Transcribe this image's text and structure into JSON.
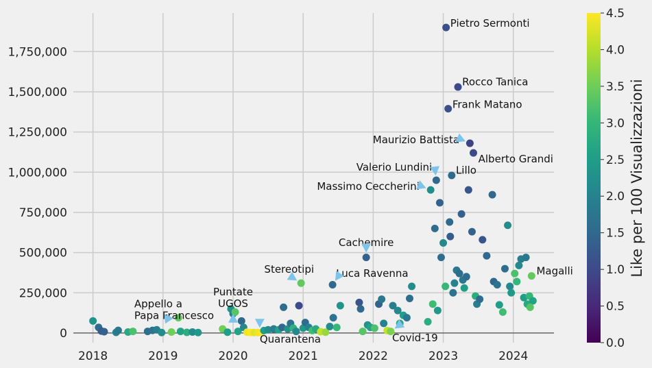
{
  "chart_data": {
    "type": "scatter",
    "title": "",
    "xlabel": "",
    "ylabel": "",
    "x_ticks": [
      "2018",
      "2019",
      "2020",
      "2021",
      "2022",
      "2023",
      "2024"
    ],
    "y_ticks": [
      "0",
      "250,000",
      "500,000",
      "750,000",
      "1,000,000",
      "1,250,000",
      "1,500,000",
      "1,750,000"
    ],
    "xlim": [
      2017.72,
      2024.58
    ],
    "ylim": [
      -60000,
      1990000
    ],
    "grid": true,
    "colorbar": {
      "label": "Like per 100 Visualizzazioni",
      "min": 0,
      "max": 4.5,
      "ticks": [
        "0.0",
        "0.5",
        "1.0",
        "1.5",
        "2.0",
        "2.5",
        "3.0",
        "3.5",
        "4.0",
        "4.5"
      ],
      "colormap": "viridis"
    },
    "points": [
      {
        "x": 2018.0,
        "y": 75000,
        "c": 2.3
      },
      {
        "x": 2018.08,
        "y": 35000,
        "c": 1.6
      },
      {
        "x": 2018.12,
        "y": 12000,
        "c": 1.3
      },
      {
        "x": 2018.16,
        "y": 8000,
        "c": 1.4
      },
      {
        "x": 2018.33,
        "y": 4000,
        "c": 2.0
      },
      {
        "x": 2018.36,
        "y": 16000,
        "c": 1.8
      },
      {
        "x": 2018.5,
        "y": 6000,
        "c": 2.7
      },
      {
        "x": 2018.57,
        "y": 10000,
        "c": 3.2
      },
      {
        "x": 2018.78,
        "y": 10000,
        "c": 1.6
      },
      {
        "x": 2018.85,
        "y": 16000,
        "c": 1.7
      },
      {
        "x": 2018.91,
        "y": 20000,
        "c": 1.9
      },
      {
        "x": 2018.98,
        "y": 3000,
        "c": 2.2
      },
      {
        "x": 2019.12,
        "y": 6000,
        "c": 3.5
      },
      {
        "x": 2019.22,
        "y": 95000,
        "c": 3.4
      },
      {
        "x": 2019.25,
        "y": 10000,
        "c": 2.6
      },
      {
        "x": 2019.34,
        "y": 4000,
        "c": 2.8
      },
      {
        "x": 2019.42,
        "y": 6000,
        "c": 2.2
      },
      {
        "x": 2019.5,
        "y": 3000,
        "c": 2.4
      },
      {
        "x": 2019.85,
        "y": 25000,
        "c": 3.5
      },
      {
        "x": 2019.92,
        "y": 5000,
        "c": 2.5
      },
      {
        "x": 2019.97,
        "y": 150000,
        "c": 2.3
      },
      {
        "x": 2020.0,
        "y": 120000,
        "c": 2.0
      },
      {
        "x": 2020.03,
        "y": 130000,
        "c": 3.3
      },
      {
        "x": 2020.07,
        "y": 10000,
        "c": 2.6
      },
      {
        "x": 2020.12,
        "y": 75000,
        "c": 1.5
      },
      {
        "x": 2020.15,
        "y": 35000,
        "c": 2.1
      },
      {
        "x": 2020.2,
        "y": 5000,
        "c": 4.4
      },
      {
        "x": 2020.25,
        "y": 3000,
        "c": 4.5
      },
      {
        "x": 2020.3,
        "y": 3000,
        "c": 4.3
      },
      {
        "x": 2020.35,
        "y": 3000,
        "c": 4.4
      },
      {
        "x": 2020.4,
        "y": 3000,
        "c": 4.5
      },
      {
        "x": 2020.44,
        "y": 15000,
        "c": 2.5
      },
      {
        "x": 2020.5,
        "y": 20000,
        "c": 2.2
      },
      {
        "x": 2020.58,
        "y": 25000,
        "c": 1.9
      },
      {
        "x": 2020.65,
        "y": 20000,
        "c": 2.6
      },
      {
        "x": 2020.7,
        "y": 35000,
        "c": 1.5
      },
      {
        "x": 2020.72,
        "y": 160000,
        "c": 1.6
      },
      {
        "x": 2020.78,
        "y": 25000,
        "c": 2.3
      },
      {
        "x": 2020.82,
        "y": 60000,
        "c": 1.7
      },
      {
        "x": 2020.86,
        "y": 30000,
        "c": 2.9
      },
      {
        "x": 2020.9,
        "y": 10000,
        "c": 2.1
      },
      {
        "x": 2020.94,
        "y": 170000,
        "c": 1.0
      },
      {
        "x": 2020.97,
        "y": 310000,
        "c": 3.4
      },
      {
        "x": 2021.0,
        "y": 30000,
        "c": 2.4
      },
      {
        "x": 2021.03,
        "y": 65000,
        "c": 1.6
      },
      {
        "x": 2021.08,
        "y": 35000,
        "c": 2.0
      },
      {
        "x": 2021.13,
        "y": 15000,
        "c": 3.1
      },
      {
        "x": 2021.18,
        "y": 25000,
        "c": 2.7
      },
      {
        "x": 2021.25,
        "y": 8000,
        "c": 4.1
      },
      {
        "x": 2021.32,
        "y": 5000,
        "c": 3.8
      },
      {
        "x": 2021.38,
        "y": 40000,
        "c": 2.2
      },
      {
        "x": 2021.43,
        "y": 95000,
        "c": 1.7
      },
      {
        "x": 2021.42,
        "y": 300000,
        "c": 1.5
      },
      {
        "x": 2021.48,
        "y": 35000,
        "c": 3.0
      },
      {
        "x": 2021.53,
        "y": 170000,
        "c": 2.3
      },
      {
        "x": 2021.8,
        "y": 190000,
        "c": 1.2
      },
      {
        "x": 2021.82,
        "y": 150000,
        "c": 1.5
      },
      {
        "x": 2021.85,
        "y": 10000,
        "c": 3.3
      },
      {
        "x": 2021.9,
        "y": 470000,
        "c": 1.4
      },
      {
        "x": 2021.92,
        "y": 50000,
        "c": 2.3
      },
      {
        "x": 2021.96,
        "y": 35000,
        "c": 2.6
      },
      {
        "x": 2022.02,
        "y": 30000,
        "c": 3.2
      },
      {
        "x": 2022.08,
        "y": 180000,
        "c": 1.4
      },
      {
        "x": 2022.12,
        "y": 210000,
        "c": 1.8
      },
      {
        "x": 2022.15,
        "y": 60000,
        "c": 2.0
      },
      {
        "x": 2022.2,
        "y": 15000,
        "c": 4.1
      },
      {
        "x": 2022.25,
        "y": 10000,
        "c": 3.6
      },
      {
        "x": 2022.28,
        "y": 170000,
        "c": 1.9
      },
      {
        "x": 2022.35,
        "y": 140000,
        "c": 2.1
      },
      {
        "x": 2022.38,
        "y": 60000,
        "c": 2.7
      },
      {
        "x": 2022.43,
        "y": 110000,
        "c": 2.5
      },
      {
        "x": 2022.48,
        "y": 95000,
        "c": 1.8
      },
      {
        "x": 2022.52,
        "y": 215000,
        "c": 1.6
      },
      {
        "x": 2022.55,
        "y": 290000,
        "c": 2.2
      },
      {
        "x": 2022.78,
        "y": 70000,
        "c": 2.8
      },
      {
        "x": 2022.82,
        "y": 890000,
        "c": 2.2
      },
      {
        "x": 2022.85,
        "y": 180000,
        "c": 3.1
      },
      {
        "x": 2022.88,
        "y": 650000,
        "c": 1.6
      },
      {
        "x": 2022.9,
        "y": 950000,
        "c": 1.5
      },
      {
        "x": 2022.92,
        "y": 140000,
        "c": 2.4
      },
      {
        "x": 2022.95,
        "y": 810000,
        "c": 1.4
      },
      {
        "x": 2022.97,
        "y": 470000,
        "c": 1.6
      },
      {
        "x": 2023.0,
        "y": 560000,
        "c": 2.1
      },
      {
        "x": 2023.03,
        "y": 290000,
        "c": 3.0
      },
      {
        "x": 2023.04,
        "y": 1900000,
        "c": 1.1
      },
      {
        "x": 2023.07,
        "y": 1395000,
        "c": 1.1
      },
      {
        "x": 2023.09,
        "y": 690000,
        "c": 1.5
      },
      {
        "x": 2023.1,
        "y": 600000,
        "c": 1.3
      },
      {
        "x": 2023.12,
        "y": 980000,
        "c": 1.5
      },
      {
        "x": 2023.14,
        "y": 250000,
        "c": 1.7
      },
      {
        "x": 2023.16,
        "y": 310000,
        "c": 2.0
      },
      {
        "x": 2023.19,
        "y": 390000,
        "c": 1.8
      },
      {
        "x": 2023.21,
        "y": 1530000,
        "c": 1.0
      },
      {
        "x": 2023.23,
        "y": 370000,
        "c": 1.6
      },
      {
        "x": 2023.26,
        "y": 740000,
        "c": 1.4
      },
      {
        "x": 2023.28,
        "y": 330000,
        "c": 1.8
      },
      {
        "x": 2023.3,
        "y": 280000,
        "c": 2.5
      },
      {
        "x": 2023.33,
        "y": 350000,
        "c": 1.6
      },
      {
        "x": 2023.36,
        "y": 890000,
        "c": 1.2
      },
      {
        "x": 2023.38,
        "y": 1180000,
        "c": 0.9
      },
      {
        "x": 2023.41,
        "y": 630000,
        "c": 1.4
      },
      {
        "x": 2023.43,
        "y": 1120000,
        "c": 1.0
      },
      {
        "x": 2023.46,
        "y": 230000,
        "c": 2.8
      },
      {
        "x": 2023.48,
        "y": 180000,
        "c": 1.9
      },
      {
        "x": 2023.52,
        "y": 210000,
        "c": 1.6
      },
      {
        "x": 2023.56,
        "y": 580000,
        "c": 1.2
      },
      {
        "x": 2023.62,
        "y": 480000,
        "c": 1.5
      },
      {
        "x": 2023.7,
        "y": 860000,
        "c": 1.5
      },
      {
        "x": 2023.72,
        "y": 320000,
        "c": 1.5
      },
      {
        "x": 2023.77,
        "y": 300000,
        "c": 1.7
      },
      {
        "x": 2023.8,
        "y": 175000,
        "c": 2.5
      },
      {
        "x": 2023.85,
        "y": 130000,
        "c": 3.1
      },
      {
        "x": 2023.88,
        "y": 400000,
        "c": 1.6
      },
      {
        "x": 2023.92,
        "y": 670000,
        "c": 2.2
      },
      {
        "x": 2023.95,
        "y": 290000,
        "c": 2.1
      },
      {
        "x": 2023.97,
        "y": 250000,
        "c": 2.4
      },
      {
        "x": 2024.02,
        "y": 370000,
        "c": 3.2
      },
      {
        "x": 2024.05,
        "y": 320000,
        "c": 3.0
      },
      {
        "x": 2024.08,
        "y": 420000,
        "c": 2.1
      },
      {
        "x": 2024.11,
        "y": 460000,
        "c": 1.9
      },
      {
        "x": 2024.15,
        "y": 220000,
        "c": 2.5
      },
      {
        "x": 2024.18,
        "y": 470000,
        "c": 1.8
      },
      {
        "x": 2024.2,
        "y": 180000,
        "c": 2.7
      },
      {
        "x": 2024.23,
        "y": 230000,
        "c": 3.0
      },
      {
        "x": 2024.26,
        "y": 355000,
        "c": 3.4
      },
      {
        "x": 2024.28,
        "y": 200000,
        "c": 2.6
      },
      {
        "x": 2024.24,
        "y": 160000,
        "c": 3.3
      }
    ],
    "annotations": [
      {
        "text": "Pietro Sermonti",
        "x": 2023.04,
        "y": 1900000,
        "arrow": false,
        "text_x": 2023.1,
        "text_y": 1905000,
        "align": "start"
      },
      {
        "text": "Rocco Tanica",
        "x": 2023.21,
        "y": 1530000,
        "arrow": false,
        "text_x": 2023.27,
        "text_y": 1540000,
        "align": "start"
      },
      {
        "text": "Frank Matano",
        "x": 2023.07,
        "y": 1395000,
        "arrow": false,
        "text_x": 2023.13,
        "text_y": 1400000,
        "align": "start"
      },
      {
        "text": "Maurizio Battista",
        "x": 2023.38,
        "y": 1180000,
        "arrow": true,
        "text_x": 2023.23,
        "text_y": 1180000,
        "align": "end"
      },
      {
        "text": "Alberto Grandi",
        "x": 2023.43,
        "y": 1120000,
        "arrow": false,
        "text_x": 2023.5,
        "text_y": 1060000,
        "align": "start"
      },
      {
        "text": "Valerio Lundini",
        "x": 2022.9,
        "y": 950000,
        "arrow": true,
        "text_x": 2022.84,
        "text_y": 1010000,
        "align": "end"
      },
      {
        "text": "Lillo",
        "x": 2023.12,
        "y": 980000,
        "arrow": false,
        "text_x": 2023.18,
        "text_y": 990000,
        "align": "start"
      },
      {
        "text": "Massimo Ceccherini",
        "x": 2022.82,
        "y": 890000,
        "arrow": true,
        "text_x": 2022.66,
        "text_y": 890000,
        "align": "end"
      },
      {
        "text": "Cachemire",
        "x": 2021.9,
        "y": 470000,
        "arrow": true,
        "text_x": 2021.9,
        "text_y": 540000,
        "align": "middle"
      },
      {
        "text": "Magalli",
        "x": 2024.26,
        "y": 355000,
        "arrow": false,
        "text_x": 2024.33,
        "text_y": 365000,
        "align": "start"
      },
      {
        "text": "Stereotipi",
        "x": 2020.97,
        "y": 310000,
        "arrow": true,
        "text_x": 2020.8,
        "text_y": 375000,
        "align": "middle"
      },
      {
        "text": "Luca Ravenna",
        "x": 2021.42,
        "y": 300000,
        "arrow": true,
        "text_x": 2021.47,
        "text_y": 350000,
        "align": "start"
      },
      {
        "text": "Puntate\nUGOS",
        "x": 2020.0,
        "y": 150000,
        "arrow": true,
        "text_x": 2020.0,
        "text_y": 235000,
        "align": "middle"
      },
      {
        "text": "Appello a\nPapa Francesco",
        "x": 2019.22,
        "y": 95000,
        "arrow": true,
        "text_x": 2018.59,
        "text_y": 160000,
        "align": "start"
      },
      {
        "text": "Quarantena",
        "x": 2020.38,
        "y": 3000,
        "arrow": true,
        "text_x": 2020.38,
        "text_y": -60000,
        "align": "start"
      },
      {
        "text": "Covid-19",
        "x": 2022.25,
        "y": 10000,
        "arrow": true,
        "text_x": 2022.27,
        "text_y": -52000,
        "align": "start"
      }
    ]
  }
}
